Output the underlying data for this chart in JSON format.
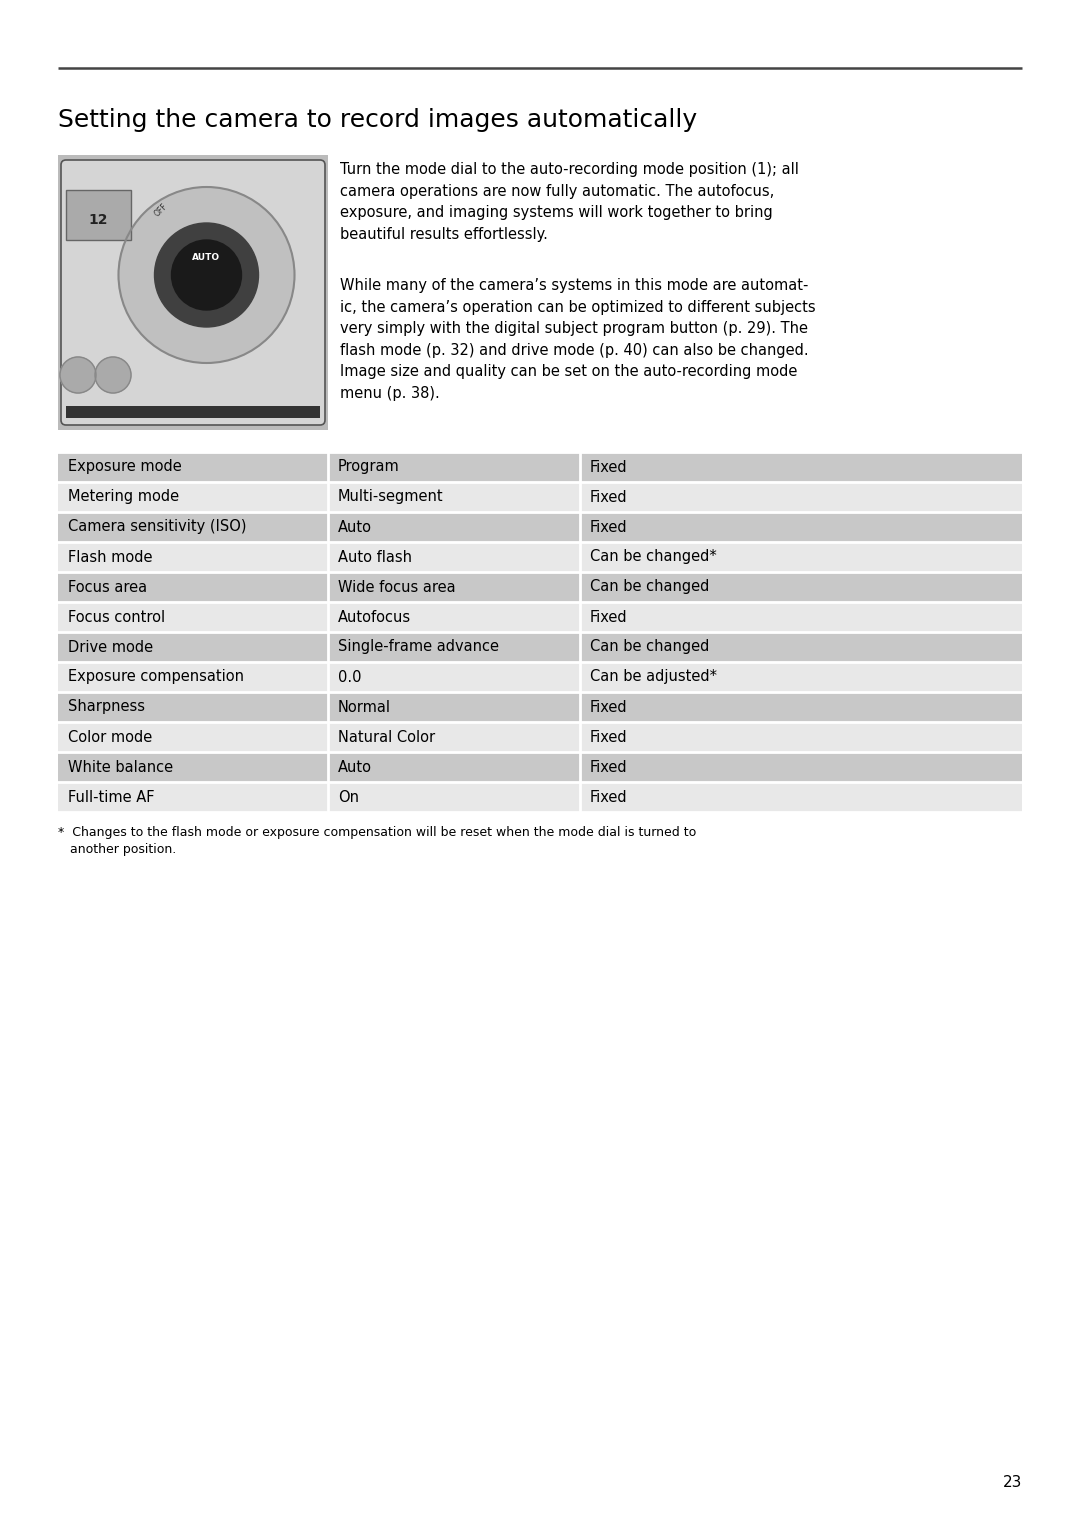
{
  "title": "Setting the camera to record images automatically",
  "title_fontsize": 18,
  "body_text_1": "Turn the mode dial to the auto-recording mode position (1); all\ncamera operations are now fully automatic. The autofocus,\nexposure, and imaging systems will work together to bring\nbeautiful results effortlessly.",
  "body_text_2": "While many of the camera’s systems in this mode are automat-\nic, the camera’s operation can be optimized to different subjects\nvery simply with the digital subject program button (p. 29). The\nflash mode (p. 32) and drive mode (p. 40) can also be changed.\nImage size and quality can be set on the auto-recording mode\nmenu (p. 38).",
  "footnote_star": "*",
  "footnote_text": "  Changes to the flash mode or exposure compensation will be reset when the mode dial is turned to\n   another position.",
  "page_number": "23",
  "table_rows": [
    [
      "Exposure mode",
      "Program",
      "Fixed"
    ],
    [
      "Metering mode",
      "Multi-segment",
      "Fixed"
    ],
    [
      "Camera sensitivity (ISO)",
      "Auto",
      "Fixed"
    ],
    [
      "Flash mode",
      "Auto flash",
      "Can be changed*"
    ],
    [
      "Focus area",
      "Wide focus area",
      "Can be changed"
    ],
    [
      "Focus control",
      "Autofocus",
      "Fixed"
    ],
    [
      "Drive mode",
      "Single-frame advance",
      "Can be changed"
    ],
    [
      "Exposure compensation",
      "0.0",
      "Can be adjusted*"
    ],
    [
      "Sharpness",
      "Normal",
      "Fixed"
    ],
    [
      "Color mode",
      "Natural Color",
      "Fixed"
    ],
    [
      "White balance",
      "Auto",
      "Fixed"
    ],
    [
      "Full-time AF",
      "On",
      "Fixed"
    ]
  ],
  "row_color_dark": "#c8c8c8",
  "row_color_light": "#e8e8e8",
  "background_color": "#ffffff",
  "text_color": "#000000",
  "rule_color": "#444444",
  "table_font_size": 10.5,
  "body_font_size": 10.5,
  "footnote_font_size": 9.0
}
